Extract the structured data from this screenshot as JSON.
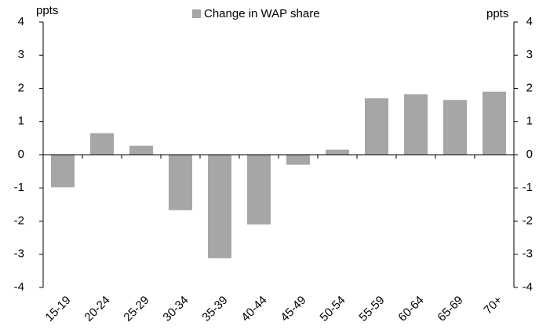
{
  "chart_data": {
    "type": "bar",
    "y_label": "ppts",
    "y2_label": "ppts",
    "categories": [
      "15-19",
      "20-24",
      "25-29",
      "30-34",
      "35-39",
      "40-44",
      "45-49",
      "50-54",
      "55-59",
      "60-64",
      "65-69",
      "70+"
    ],
    "series": [
      {
        "name": "Change in WAP share",
        "color": "#a6a6a6",
        "values": [
          -0.98,
          0.65,
          0.27,
          -1.67,
          -3.12,
          -2.1,
          -0.3,
          0.15,
          1.7,
          1.82,
          1.65,
          1.9
        ]
      }
    ],
    "ylim": [
      -4,
      4
    ],
    "yticks": [
      -4,
      -3,
      -2,
      -1,
      0,
      1,
      2,
      3,
      4
    ],
    "y2lim": [
      -4,
      4
    ],
    "y2ticks": [
      -4,
      -3,
      -2,
      -1,
      0,
      1,
      2,
      3,
      4
    ],
    "legend": "top"
  }
}
